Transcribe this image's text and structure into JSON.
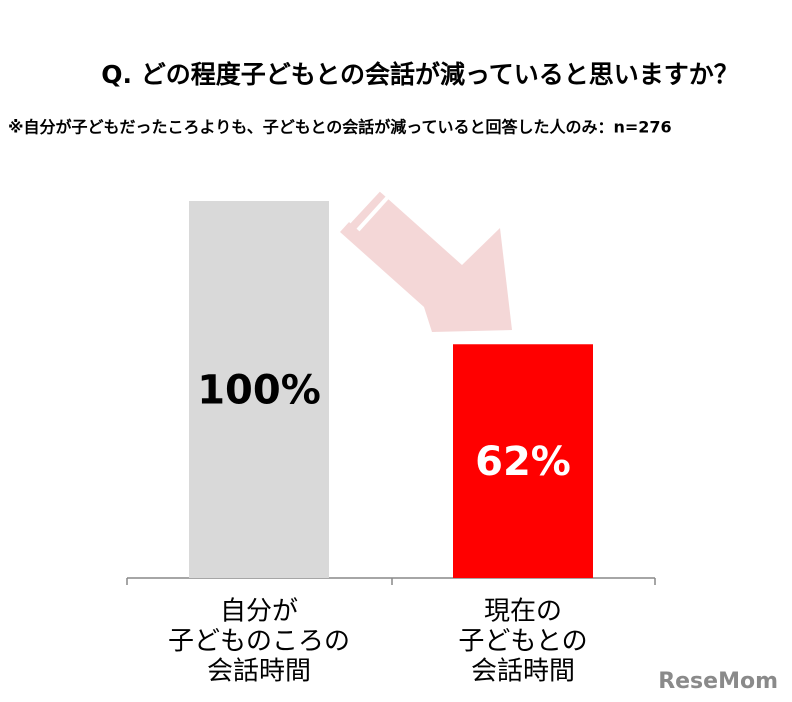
{
  "chart_data": {
    "type": "bar",
    "title": "Q. どの程度子どもとの会話が減っていると思いますか？",
    "subtitle": "※自分が子どもだったころよりも、子どもとの会話が減っていると回答した人のみ：n=276",
    "categories": [
      [
        "自分が",
        "子どものころの",
        "会話時間"
      ],
      [
        "現在の",
        "子どもとの",
        "会話時間"
      ]
    ],
    "values": [
      100,
      62
    ],
    "value_labels": [
      "100%",
      "62%"
    ],
    "colors": [
      "#d9d9d9",
      "#ff0000"
    ],
    "watermark": "ReseMom"
  }
}
